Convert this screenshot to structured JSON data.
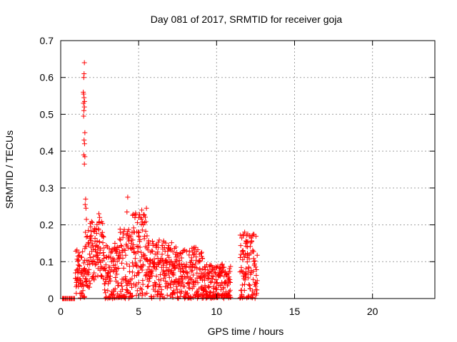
{
  "chart_data": {
    "type": "scatter",
    "title": "Day 081 of 2017, SRMTID for receiver goja",
    "xlabel": "GPS time / hours",
    "ylabel": "SRMTID / TECUs",
    "xlim": [
      0,
      24
    ],
    "ylim": [
      0,
      0.7
    ],
    "x_ticks": [
      0,
      5,
      10,
      15,
      20
    ],
    "x_tick_labels": [
      "0",
      "5",
      "10",
      "15",
      "20"
    ],
    "y_ticks": [
      0,
      0.1,
      0.2,
      0.3,
      0.4,
      0.5,
      0.6,
      0.7
    ],
    "y_tick_labels": [
      "0",
      "0.1",
      "0.2",
      "0.3",
      "0.4",
      "0.5",
      "0.6",
      "0.7"
    ],
    "grid": true,
    "marker": "plus",
    "color": "#ff0000",
    "series": [
      {
        "name": "SRMTID",
        "segments": [
          {
            "from": 0.1,
            "to": 0.95,
            "step": 0.05,
            "base": 0.0,
            "noise": 0.0
          },
          {
            "from": 0.95,
            "to": 1.25,
            "step": 0.02,
            "base": 0.07,
            "noise": 0.04
          },
          {
            "from": 1.25,
            "to": 1.55,
            "step": 0.02,
            "base": 0.06,
            "noise": 0.05
          },
          {
            "from": 1.55,
            "to": 1.9,
            "step": 0.02,
            "base": 0.11,
            "noise": 0.06
          },
          {
            "from": 1.9,
            "to": 2.8,
            "step": 0.02,
            "base": 0.13,
            "noise": 0.05
          },
          {
            "from": 2.8,
            "to": 3.7,
            "step": 0.02,
            "base": 0.07,
            "noise": 0.05
          },
          {
            "from": 3.7,
            "to": 4.6,
            "step": 0.02,
            "base": 0.08,
            "noise": 0.07
          },
          {
            "from": 4.6,
            "to": 5.6,
            "step": 0.02,
            "base": 0.12,
            "noise": 0.07
          },
          {
            "from": 5.6,
            "to": 7.2,
            "step": 0.02,
            "base": 0.08,
            "noise": 0.05
          },
          {
            "from": 7.2,
            "to": 9.1,
            "step": 0.02,
            "base": 0.06,
            "noise": 0.05
          },
          {
            "from": 9.1,
            "to": 10.9,
            "step": 0.02,
            "base": 0.03,
            "noise": 0.04
          },
          {
            "from": 11.5,
            "to": 12.6,
            "step": 0.02,
            "base": 0.08,
            "noise": 0.06
          }
        ],
        "outliers": [
          [
            1.52,
            0.64
          ],
          [
            1.5,
            0.61
          ],
          [
            1.48,
            0.6
          ],
          [
            1.45,
            0.56
          ],
          [
            1.47,
            0.555
          ],
          [
            1.5,
            0.545
          ],
          [
            1.53,
            0.535
          ],
          [
            1.46,
            0.53
          ],
          [
            1.52,
            0.52
          ],
          [
            1.49,
            0.51
          ],
          [
            1.47,
            0.495
          ],
          [
            1.55,
            0.45
          ],
          [
            1.5,
            0.43
          ],
          [
            1.53,
            0.42
          ],
          [
            1.48,
            0.39
          ],
          [
            1.55,
            0.385
          ],
          [
            1.52,
            0.365
          ],
          [
            1.6,
            0.27
          ],
          [
            1.57,
            0.255
          ],
          [
            1.62,
            0.245
          ],
          [
            1.65,
            0.215
          ],
          [
            2.45,
            0.23
          ],
          [
            2.5,
            0.22
          ],
          [
            4.3,
            0.275
          ],
          [
            4.25,
            0.235
          ],
          [
            5.0,
            0.22
          ],
          [
            5.2,
            0.24
          ],
          [
            5.5,
            0.245
          ],
          [
            11.8,
            0.18
          ],
          [
            12.0,
            0.175
          ]
        ]
      }
    ]
  }
}
